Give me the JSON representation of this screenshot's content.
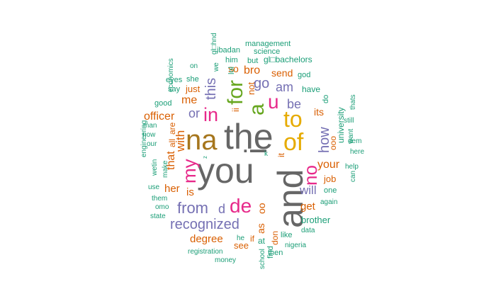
{
  "palette": {
    "teal": "#1b9e77",
    "orange": "#d95f02",
    "purple": "#7570b3",
    "magenta": "#e7298a",
    "green": "#66a61e",
    "gold": "#e6ab02",
    "brown": "#a6761d",
    "gray": "#666666"
  },
  "words": [
    {
      "text": "you",
      "color": "gray"
    },
    {
      "text": "the",
      "color": "gray"
    },
    {
      "text": "and",
      "color": "gray"
    },
    {
      "text": "na",
      "color": "brown"
    },
    {
      "text": "i",
      "color": "gray"
    },
    {
      "text": "of",
      "color": "gold"
    },
    {
      "text": "to",
      "color": "gold"
    },
    {
      "text": "for",
      "color": "green"
    },
    {
      "text": "a",
      "color": "green"
    },
    {
      "text": "u",
      "color": "magenta"
    },
    {
      "text": "in",
      "color": "magenta"
    },
    {
      "text": "de",
      "color": "magenta"
    },
    {
      "text": "my",
      "color": "magenta"
    },
    {
      "text": "no",
      "color": "magenta"
    },
    {
      "text": "from",
      "color": "purple"
    },
    {
      "text": "recognized",
      "color": "purple"
    },
    {
      "text": "this",
      "color": "purple"
    },
    {
      "text": "go",
      "color": "purple"
    },
    {
      "text": "how",
      "color": "purple"
    },
    {
      "text": "am",
      "color": "purple"
    },
    {
      "text": "be",
      "color": "purple"
    },
    {
      "text": "or",
      "color": "purple"
    },
    {
      "text": "will",
      "color": "purple"
    },
    {
      "text": "d",
      "color": "purple"
    },
    {
      "text": "with",
      "color": "orange"
    },
    {
      "text": "officer",
      "color": "orange"
    },
    {
      "text": "your",
      "color": "orange"
    },
    {
      "text": "me",
      "color": "orange"
    },
    {
      "text": "bro",
      "color": "orange"
    },
    {
      "text": "that",
      "color": "orange"
    },
    {
      "text": "is",
      "color": "orange"
    },
    {
      "text": "her",
      "color": "orange"
    },
    {
      "text": "get",
      "color": "orange"
    },
    {
      "text": "degree",
      "color": "orange"
    },
    {
      "text": "as",
      "color": "orange"
    },
    {
      "text": "oo",
      "color": "orange"
    },
    {
      "text": "its",
      "color": "orange"
    },
    {
      "text": "so",
      "color": "orange"
    },
    {
      "text": "not",
      "color": "orange"
    },
    {
      "text": "just",
      "color": "orange"
    },
    {
      "text": "send",
      "color": "orange"
    },
    {
      "text": "see",
      "color": "orange"
    },
    {
      "text": "ii",
      "color": "orange"
    },
    {
      "text": "job",
      "color": "orange"
    },
    {
      "text": "ooo",
      "color": "orange"
    },
    {
      "text": "all",
      "color": "orange"
    },
    {
      "text": "are",
      "color": "orange"
    },
    {
      "text": "if",
      "color": "orange"
    },
    {
      "text": "don",
      "color": "orange"
    },
    {
      "text": "it",
      "color": "orange"
    },
    {
      "text": "brother",
      "color": "teal"
    },
    {
      "text": "university",
      "color": "teal"
    },
    {
      "text": "have",
      "color": "teal"
    },
    {
      "text": "management",
      "color": "teal"
    },
    {
      "text": "science",
      "color": "teal"
    },
    {
      "text": "gl□bachelors",
      "color": "teal"
    },
    {
      "text": "ibadan",
      "color": "teal"
    },
    {
      "text": "him",
      "color": "teal"
    },
    {
      "text": "but",
      "color": "teal"
    },
    {
      "text": "lol",
      "color": "teal"
    },
    {
      "text": "we",
      "color": "teal"
    },
    {
      "text": "gl□hnd",
      "color": "teal"
    },
    {
      "text": "on",
      "color": "teal"
    },
    {
      "text": "economics",
      "color": "teal"
    },
    {
      "text": "eyes",
      "color": "teal"
    },
    {
      "text": "she",
      "color": "teal"
    },
    {
      "text": "say",
      "color": "teal"
    },
    {
      "text": "good",
      "color": "teal"
    },
    {
      "text": "god",
      "color": "teal"
    },
    {
      "text": "do",
      "color": "teal"
    },
    {
      "text": "thats",
      "color": "teal"
    },
    {
      "text": "still",
      "color": "teal"
    },
    {
      "text": "dem",
      "color": "teal"
    },
    {
      "text": "want",
      "color": "teal"
    },
    {
      "text": "here",
      "color": "teal"
    },
    {
      "text": "help",
      "color": "teal"
    },
    {
      "text": "can",
      "color": "teal"
    },
    {
      "text": "one",
      "color": "teal"
    },
    {
      "text": "again",
      "color": "teal"
    },
    {
      "text": "data",
      "color": "teal"
    },
    {
      "text": "like",
      "color": "teal"
    },
    {
      "text": "nigeria",
      "color": "teal"
    },
    {
      "text": "at",
      "color": "teal"
    },
    {
      "text": "then",
      "color": "teal"
    },
    {
      "text": "find",
      "color": "teal"
    },
    {
      "text": "school",
      "color": "teal"
    },
    {
      "text": "he",
      "color": "teal"
    },
    {
      "text": "registration",
      "color": "teal"
    },
    {
      "text": "money",
      "color": "teal"
    },
    {
      "text": "state",
      "color": "teal"
    },
    {
      "text": "omo",
      "color": "teal"
    },
    {
      "text": "them",
      "color": "teal"
    },
    {
      "text": "use",
      "color": "teal"
    },
    {
      "text": "wetin",
      "color": "teal"
    },
    {
      "text": "make",
      "color": "teal"
    },
    {
      "text": "engineering",
      "color": "teal"
    },
    {
      "text": "our",
      "color": "teal"
    },
    {
      "text": "now",
      "color": "teal"
    },
    {
      "text": "man",
      "color": "teal"
    },
    {
      "text": "k",
      "color": "teal"
    },
    {
      "text": "officer",
      "color": "orange"
    },
    {
      "text": "z",
      "color": "teal"
    }
  ]
}
